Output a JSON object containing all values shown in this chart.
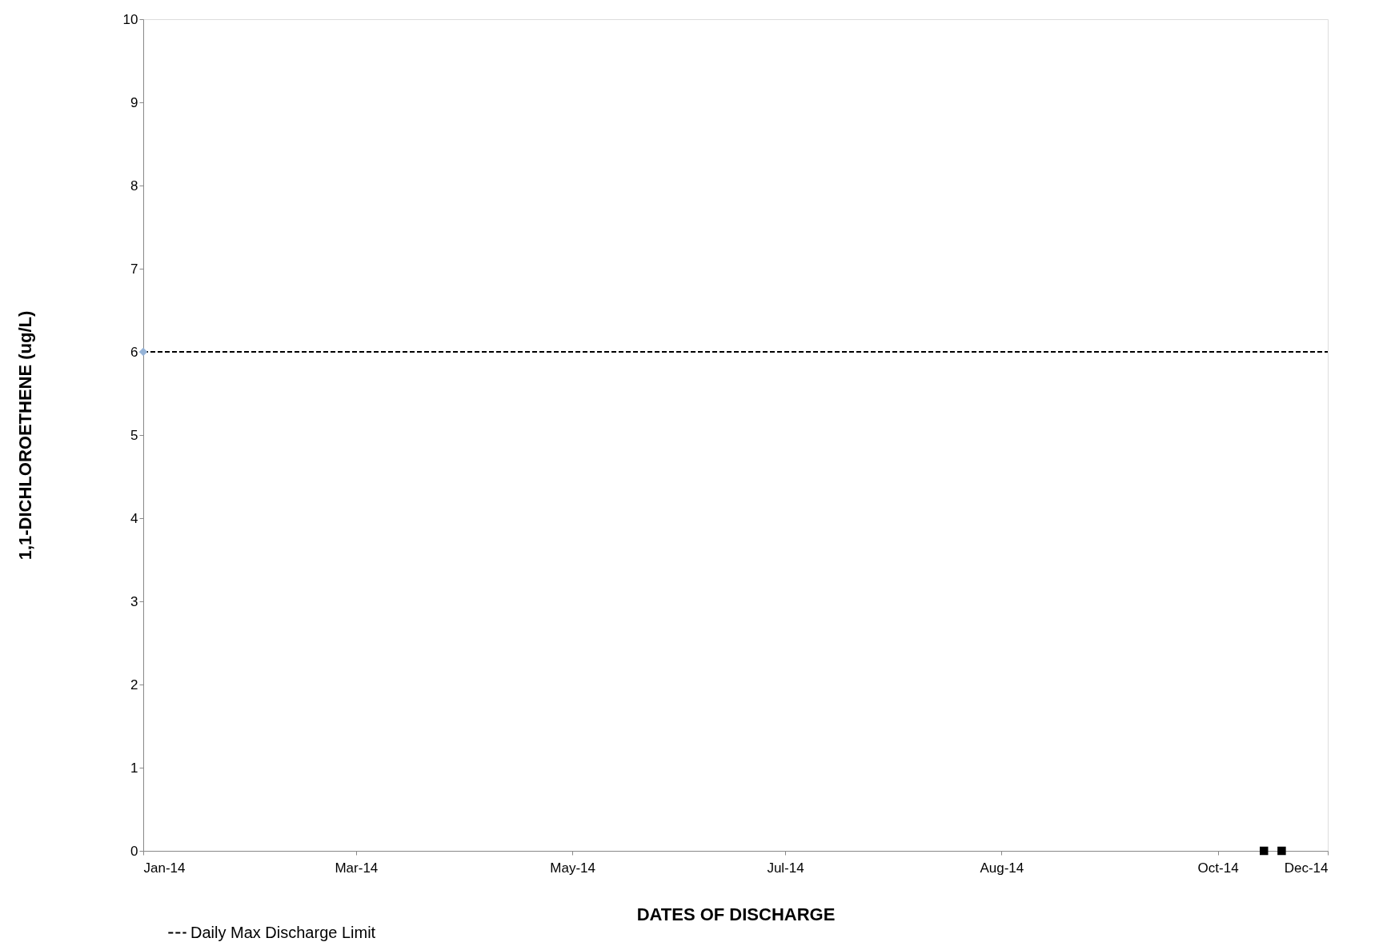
{
  "chart_data": {
    "type": "scatter",
    "xlabel": "DATES OF DISCHARGE",
    "ylabel": "1,1-DICHLOROETHENE (ug/L)",
    "xlim": [
      "2014-01-01",
      "2014-12-01"
    ],
    "xticks": [
      {
        "value": "2014-01-01",
        "label": "Jan-14"
      },
      {
        "value": "2014-03-02",
        "label": "Mar-14"
      },
      {
        "value": "2014-05-02",
        "label": "May-14"
      },
      {
        "value": "2014-07-01",
        "label": "Jul-14"
      },
      {
        "value": "2014-08-31",
        "label": "Aug-14"
      },
      {
        "value": "2014-10-31",
        "label": "Oct-14"
      },
      {
        "value": "2014-12-01",
        "label": "Dec-14"
      }
    ],
    "ylim": [
      0,
      10
    ],
    "yticks": [
      0,
      1,
      2,
      3,
      4,
      5,
      6,
      7,
      8,
      9,
      10
    ],
    "grid": false,
    "legend": "bottom left",
    "series": [
      {
        "name": "Daily Max Discharge Limit",
        "type": "line",
        "line_style": "dashed",
        "marker": "none",
        "color": "#000000",
        "x": [
          "2014-01-01",
          "2014-12-01"
        ],
        "values": [
          6,
          6
        ]
      },
      {
        "marker": "diamond",
        "color": "#95b3d7",
        "x": [
          "2014-01-01"
        ],
        "values": [
          6
        ]
      },
      {
        "marker": "square",
        "color": "#000000",
        "x": [
          "2014-11-13",
          "2014-11-18"
        ],
        "values": [
          0,
          0
        ]
      }
    ]
  }
}
